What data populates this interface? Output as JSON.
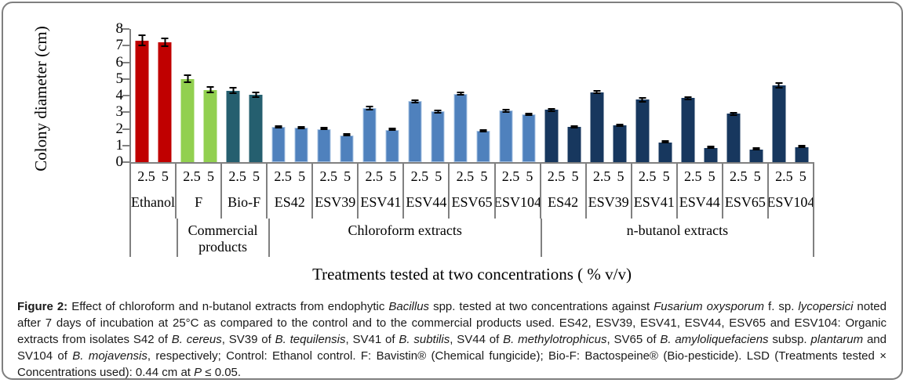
{
  "chart_data": {
    "type": "bar",
    "title": "",
    "ylabel": "Colony diameter (cm)",
    "xlabel": "Treatments tested at two concentrations ( % v/v)",
    "ylim": [
      0,
      8
    ],
    "y_ticks": [
      8,
      7,
      6,
      5,
      4,
      3,
      2,
      1,
      0
    ],
    "grid": false,
    "legend": "none",
    "concentrations": [
      "2.5",
      "5"
    ],
    "series_note": "two bars per group = concentrations 2.5 and 5 % v/v",
    "colors": {
      "control": "#C00000",
      "fungicide": "#92D050",
      "biopesticide": "#255F6F",
      "chloroform": "#4F81BD",
      "nbutanol": "#17375E",
      "axis": "#808080"
    },
    "groups": [
      {
        "label": "Ethanol",
        "section": "",
        "color": "#C00000",
        "values": [
          7.3,
          7.2
        ],
        "errors": [
          0.35,
          0.3
        ]
      },
      {
        "label": "F",
        "section": "Commercial products",
        "color": "#92D050",
        "values": [
          5.0,
          4.35
        ],
        "errors": [
          0.25,
          0.2
        ]
      },
      {
        "label": "Bio-F",
        "section": "Commercial products",
        "color": "#255F6F",
        "values": [
          4.3,
          4.05
        ],
        "errors": [
          0.2,
          0.2
        ]
      },
      {
        "label": "ES42",
        "section": "Chloroform extracts",
        "color": "#4F81BD",
        "edge": "#A9C4E3",
        "values": [
          2.1,
          2.05
        ],
        "errors": [
          0.07,
          0.07
        ]
      },
      {
        "label": "ESV39",
        "section": "Chloroform extracts",
        "color": "#4F81BD",
        "edge": "#A9C4E3",
        "values": [
          2.0,
          1.6
        ],
        "errors": [
          0.08,
          0.06
        ]
      },
      {
        "label": "ESV41",
        "section": "Chloroform extracts",
        "color": "#4F81BD",
        "edge": "#A9C4E3",
        "values": [
          3.25,
          1.95
        ],
        "errors": [
          0.12,
          0.08
        ]
      },
      {
        "label": "ESV44",
        "section": "Chloroform extracts",
        "color": "#4F81BD",
        "edge": "#A9C4E3",
        "values": [
          3.65,
          3.05
        ],
        "errors": [
          0.12,
          0.12
        ]
      },
      {
        "label": "ESV65",
        "section": "Chloroform extracts",
        "color": "#4F81BD",
        "edge": "#A9C4E3",
        "values": [
          4.1,
          1.9
        ],
        "errors": [
          0.12,
          0.1
        ]
      },
      {
        "label": "ESV104",
        "section": "Chloroform extracts",
        "color": "#4F81BD",
        "edge": "#A9C4E3",
        "values": [
          3.1,
          2.85
        ],
        "errors": [
          0.12,
          0.08
        ]
      },
      {
        "label": "ES42",
        "section": "n-butanol extracts",
        "color": "#17375E",
        "values": [
          3.15,
          2.1
        ],
        "errors": [
          0.12,
          0.08
        ]
      },
      {
        "label": "ESV39",
        "section": "n-butanol extracts",
        "color": "#17375E",
        "values": [
          4.2,
          2.2
        ],
        "errors": [
          0.12,
          0.07
        ]
      },
      {
        "label": "ESV41",
        "section": "n-butanol extracts",
        "color": "#17375E",
        "values": [
          3.75,
          1.2
        ],
        "errors": [
          0.15,
          0.05
        ]
      },
      {
        "label": "ESV44",
        "section": "n-butanol extracts",
        "color": "#17375E",
        "values": [
          3.85,
          0.85
        ],
        "errors": [
          0.12,
          0.04
        ]
      },
      {
        "label": "ESV65",
        "section": "n-butanol extracts",
        "color": "#17375E",
        "values": [
          2.9,
          0.75
        ],
        "errors": [
          0.12,
          0.04
        ]
      },
      {
        "label": "ESV104",
        "section": "n-butanol extracts",
        "color": "#17375E",
        "values": [
          4.6,
          0.9
        ],
        "errors": [
          0.18,
          0.04
        ]
      }
    ],
    "super_groups": [
      {
        "label": "",
        "span": 1
      },
      {
        "label": "Commercial products",
        "span": 2
      },
      {
        "label": "Chloroform extracts",
        "span": 6
      },
      {
        "label": "n-butanol extracts",
        "span": 6
      }
    ]
  },
  "caption": {
    "segments": [
      {
        "text": "Figure 2:",
        "bold": true
      },
      {
        "text": " Effect of chloroform and n-butanol extracts from endophytic "
      },
      {
        "text": "Bacillus",
        "italic": true
      },
      {
        "text": " spp. tested at two concentrations against "
      },
      {
        "text": "Fusarium oxysporum",
        "italic": true
      },
      {
        "text": " f. sp. "
      },
      {
        "text": "lycopersici",
        "italic": true
      },
      {
        "text": " noted after 7 days of incubation at 25°C as compared to the control and to the commercial products used. ES42, ESV39, ESV41, ESV44, ESV65 and ESV104: Organic extracts from isolates S42 of "
      },
      {
        "text": "B. cereus",
        "italic": true
      },
      {
        "text": ", SV39 of "
      },
      {
        "text": "B. tequilensis",
        "italic": true
      },
      {
        "text": ", SV41 of "
      },
      {
        "text": "B. subtilis",
        "italic": true
      },
      {
        "text": ", SV44 of "
      },
      {
        "text": "B. methylotrophicus",
        "italic": true
      },
      {
        "text": ", SV65 of "
      },
      {
        "text": "B. amyloliquefaciens",
        "italic": true
      },
      {
        "text": " subsp. "
      },
      {
        "text": "plantarum",
        "italic": true
      },
      {
        "text": " and SV104 of "
      },
      {
        "text": "B. mojavensis",
        "italic": true
      },
      {
        "text": ", respectively; Control: Ethanol control. F: Bavistin® (Chemical fungicide); Bio-F: Bactospeine® (Bio-pesticide). LSD (Treatments tested × Concentrations used): 0.44 cm at "
      },
      {
        "text": "P",
        "italic": true
      },
      {
        "text": " ≤ 0.05."
      }
    ]
  }
}
